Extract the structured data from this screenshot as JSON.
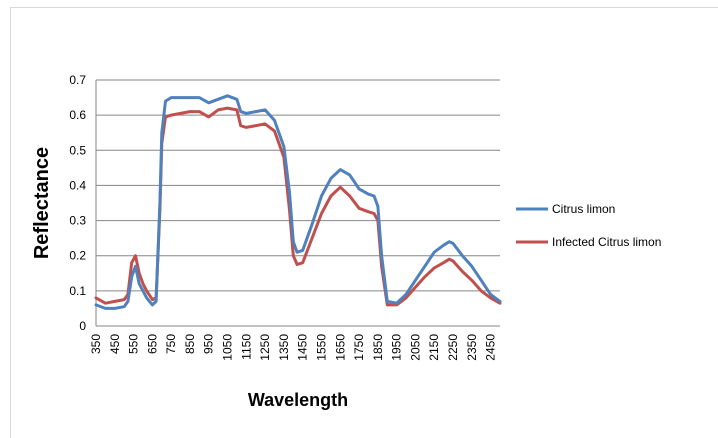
{
  "chart_data": {
    "type": "line",
    "title": "",
    "xlabel": "Wavelength",
    "ylabel": "Reflectance",
    "ylim": [
      0,
      0.7
    ],
    "yticks": [
      "0",
      "0.1",
      "0.2",
      "0.3",
      "0.4",
      "0.5",
      "0.6",
      "0.7"
    ],
    "xticks": [
      "350",
      "450",
      "550",
      "650",
      "750",
      "850",
      "950",
      "1050",
      "1150",
      "1250",
      "1350",
      "1450",
      "1550",
      "1650",
      "1750",
      "1850",
      "1950",
      "2050",
      "2150",
      "2250",
      "2350",
      "2450"
    ],
    "xlim": [
      350,
      2500
    ],
    "grid": "horizontal",
    "legend_position": "right",
    "series": [
      {
        "name": "Citrus limon",
        "color": "#4f81bd",
        "x": [
          350,
          400,
          450,
          500,
          520,
          540,
          560,
          580,
          600,
          620,
          650,
          670,
          690,
          700,
          720,
          750,
          800,
          850,
          900,
          950,
          1000,
          1050,
          1100,
          1120,
          1150,
          1200,
          1250,
          1300,
          1350,
          1380,
          1400,
          1420,
          1450,
          1500,
          1550,
          1600,
          1650,
          1700,
          1750,
          1800,
          1830,
          1850,
          1870,
          1900,
          1950,
          2000,
          2050,
          2100,
          2150,
          2200,
          2230,
          2250,
          2300,
          2350,
          2400,
          2450,
          2500
        ],
        "y": [
          0.06,
          0.05,
          0.05,
          0.055,
          0.07,
          0.14,
          0.17,
          0.12,
          0.1,
          0.08,
          0.06,
          0.07,
          0.35,
          0.55,
          0.64,
          0.65,
          0.65,
          0.65,
          0.65,
          0.635,
          0.645,
          0.655,
          0.645,
          0.61,
          0.605,
          0.61,
          0.615,
          0.585,
          0.51,
          0.38,
          0.24,
          0.21,
          0.215,
          0.29,
          0.37,
          0.42,
          0.445,
          0.43,
          0.39,
          0.375,
          0.37,
          0.34,
          0.2,
          0.07,
          0.065,
          0.09,
          0.13,
          0.17,
          0.21,
          0.23,
          0.24,
          0.235,
          0.2,
          0.17,
          0.13,
          0.09,
          0.07
        ]
      },
      {
        "name": "Infected Citrus limon",
        "color": "#c0504d",
        "x": [
          350,
          400,
          450,
          500,
          520,
          540,
          560,
          580,
          600,
          620,
          650,
          670,
          690,
          700,
          720,
          750,
          800,
          850,
          900,
          950,
          1000,
          1050,
          1100,
          1120,
          1150,
          1200,
          1250,
          1300,
          1350,
          1380,
          1400,
          1420,
          1450,
          1500,
          1550,
          1600,
          1650,
          1700,
          1750,
          1800,
          1830,
          1850,
          1870,
          1900,
          1950,
          2000,
          2050,
          2100,
          2150,
          2200,
          2230,
          2250,
          2300,
          2350,
          2400,
          2450,
          2500
        ],
        "y": [
          0.08,
          0.065,
          0.07,
          0.075,
          0.09,
          0.18,
          0.2,
          0.15,
          0.12,
          0.1,
          0.075,
          0.08,
          0.33,
          0.52,
          0.595,
          0.6,
          0.605,
          0.61,
          0.61,
          0.595,
          0.615,
          0.62,
          0.615,
          0.57,
          0.565,
          0.57,
          0.575,
          0.555,
          0.48,
          0.33,
          0.2,
          0.175,
          0.18,
          0.25,
          0.32,
          0.37,
          0.395,
          0.37,
          0.335,
          0.325,
          0.32,
          0.3,
          0.17,
          0.06,
          0.06,
          0.08,
          0.11,
          0.14,
          0.165,
          0.18,
          0.19,
          0.185,
          0.155,
          0.13,
          0.1,
          0.08,
          0.065
        ]
      }
    ]
  }
}
